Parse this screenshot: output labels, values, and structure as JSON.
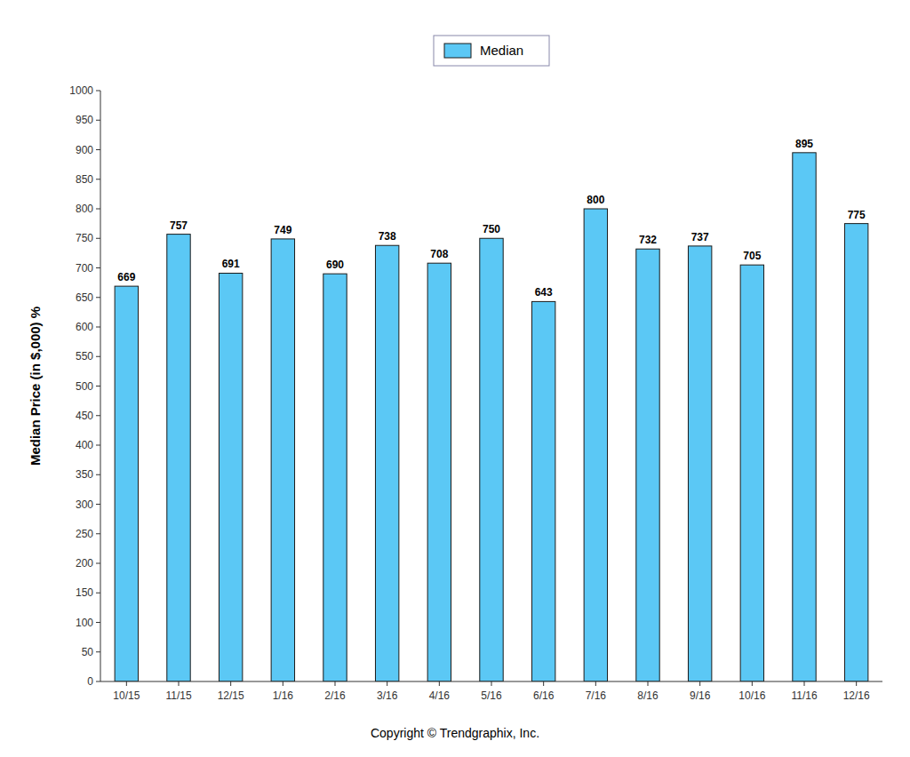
{
  "chart_data": {
    "type": "bar",
    "categories": [
      "10/15",
      "11/15",
      "12/15",
      "1/16",
      "2/16",
      "3/16",
      "4/16",
      "5/16",
      "6/16",
      "7/16",
      "8/16",
      "9/16",
      "10/16",
      "11/16",
      "12/16"
    ],
    "series": [
      {
        "name": "Median",
        "color": "#5BC8F5",
        "values": [
          669,
          757,
          691,
          749,
          690,
          738,
          708,
          750,
          643,
          800,
          732,
          737,
          705,
          895,
          775
        ]
      }
    ],
    "ylabel": "Median Price (in $,000) %",
    "ylim": [
      0,
      1000
    ],
    "yticks": [
      0,
      50,
      100,
      150,
      200,
      250,
      300,
      350,
      400,
      450,
      500,
      550,
      600,
      650,
      700,
      750,
      800,
      850,
      900,
      950,
      1000
    ],
    "annotations": [
      "Copyright © Trendgraphix, Inc."
    ],
    "grid": false,
    "legend": "top",
    "data_labels": true
  }
}
